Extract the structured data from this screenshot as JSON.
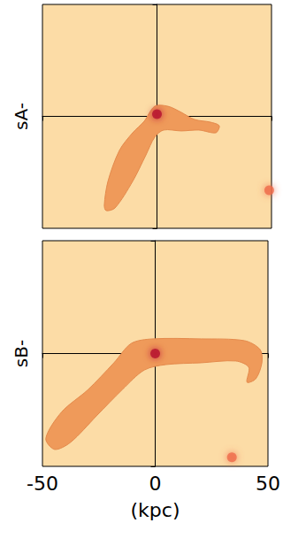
{
  "chart_data": [
    {
      "type": "polygon",
      "ylabel": "sA-",
      "xlim": [
        -50,
        50
      ],
      "ylim": [
        -50,
        50
      ],
      "xticks": [
        -50,
        0,
        50
      ],
      "yticks": [
        -50,
        0,
        50
      ],
      "tick_labels": false,
      "series": [
        {
          "type": "polygon",
          "color": "#ef9a5a",
          "x": [
            -23,
            -21.4,
            -16.4,
            -10.6,
            -5.6,
            -1,
            4.8,
            10.6,
            16.4,
            23.4,
            27.2,
            25.7,
            18.3,
            10.6,
            2.9,
            -1,
            -4.8,
            -10.6,
            -18.3,
            -22.2
          ],
          "y": [
            -39.7,
            -29,
            -15.2,
            -7.3,
            -2.2,
            4.5,
            4.5,
            1.8,
            -1.4,
            -2.6,
            -4.2,
            -7.3,
            -6.1,
            -6.5,
            -6.1,
            -9.3,
            -17.2,
            -29,
            -40.9,
            -42.1
          ]
        },
        {
          "type": "scatter",
          "marker": "circle",
          "color": "#b5122e",
          "x": [
            0
          ],
          "y": [
            1
          ]
        },
        {
          "type": "scatter",
          "marker": "circle",
          "color": "#ef6a4a",
          "x": [
            49
          ],
          "y": [
            -33
          ]
        }
      ]
    },
    {
      "type": "polygon",
      "ylabel": "sB-",
      "xlabel": "(kpc)",
      "xlim": [
        -50,
        50
      ],
      "ylim": [
        -50,
        50
      ],
      "xticks": [
        -50,
        0,
        50
      ],
      "yticks": [
        -50,
        0,
        50
      ],
      "tick_labels": "x",
      "series": [
        {
          "type": "polygon",
          "color": "#ef9a5a",
          "x": [
            -48.5,
            -41.5,
            -29.9,
            -18.3,
            -10.6,
            -1,
            20.3,
            39.6,
            46.5,
            47.3,
            44.6,
            40.7,
            41.5,
            35.7,
            20.3,
            4.8,
            -4.8,
            -14.5,
            -26,
            -37.6,
            -44.6
          ],
          "y": [
            -37.6,
            -25.9,
            -16.1,
            -4.1,
            4.5,
            6.5,
            6.5,
            5.7,
            1.8,
            -4.1,
            -11.2,
            -12.7,
            -6.1,
            -3.3,
            -4.1,
            -4.9,
            -7.3,
            -15.9,
            -27.6,
            -39.4,
            -42.5
          ]
        },
        {
          "type": "scatter",
          "marker": "circle",
          "color": "#b5122e",
          "x": [
            0
          ],
          "y": [
            0
          ]
        },
        {
          "type": "scatter",
          "marker": "circle",
          "color": "#ef6a4a",
          "x": [
            34
          ],
          "y": [
            -46
          ]
        }
      ]
    }
  ]
}
